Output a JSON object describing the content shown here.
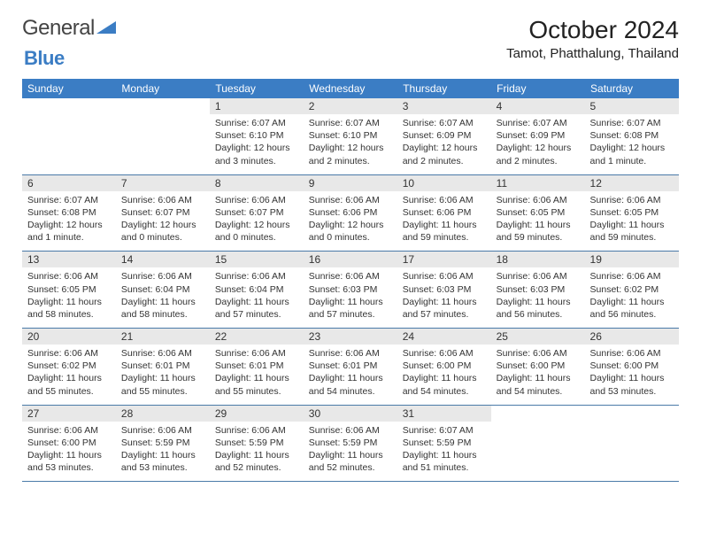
{
  "logo": {
    "word1": "General",
    "word2": "Blue"
  },
  "title": "October 2024",
  "location": "Tamot, Phatthalung, Thailand",
  "colors": {
    "header_bg": "#3b7dc4",
    "header_text": "#ffffff",
    "daynum_bg": "#e8e8e8",
    "rule": "#4a7aa8",
    "logo_blue": "#3b7dc4",
    "text": "#333333",
    "background": "#ffffff"
  },
  "weekdays": [
    "Sunday",
    "Monday",
    "Tuesday",
    "Wednesday",
    "Thursday",
    "Friday",
    "Saturday"
  ],
  "weeks": [
    [
      {
        "n": "",
        "sr": "",
        "ss": "",
        "dl": ""
      },
      {
        "n": "",
        "sr": "",
        "ss": "",
        "dl": ""
      },
      {
        "n": "1",
        "sr": "Sunrise: 6:07 AM",
        "ss": "Sunset: 6:10 PM",
        "dl": "Daylight: 12 hours and 3 minutes."
      },
      {
        "n": "2",
        "sr": "Sunrise: 6:07 AM",
        "ss": "Sunset: 6:10 PM",
        "dl": "Daylight: 12 hours and 2 minutes."
      },
      {
        "n": "3",
        "sr": "Sunrise: 6:07 AM",
        "ss": "Sunset: 6:09 PM",
        "dl": "Daylight: 12 hours and 2 minutes."
      },
      {
        "n": "4",
        "sr": "Sunrise: 6:07 AM",
        "ss": "Sunset: 6:09 PM",
        "dl": "Daylight: 12 hours and 2 minutes."
      },
      {
        "n": "5",
        "sr": "Sunrise: 6:07 AM",
        "ss": "Sunset: 6:08 PM",
        "dl": "Daylight: 12 hours and 1 minute."
      }
    ],
    [
      {
        "n": "6",
        "sr": "Sunrise: 6:07 AM",
        "ss": "Sunset: 6:08 PM",
        "dl": "Daylight: 12 hours and 1 minute."
      },
      {
        "n": "7",
        "sr": "Sunrise: 6:06 AM",
        "ss": "Sunset: 6:07 PM",
        "dl": "Daylight: 12 hours and 0 minutes."
      },
      {
        "n": "8",
        "sr": "Sunrise: 6:06 AM",
        "ss": "Sunset: 6:07 PM",
        "dl": "Daylight: 12 hours and 0 minutes."
      },
      {
        "n": "9",
        "sr": "Sunrise: 6:06 AM",
        "ss": "Sunset: 6:06 PM",
        "dl": "Daylight: 12 hours and 0 minutes."
      },
      {
        "n": "10",
        "sr": "Sunrise: 6:06 AM",
        "ss": "Sunset: 6:06 PM",
        "dl": "Daylight: 11 hours and 59 minutes."
      },
      {
        "n": "11",
        "sr": "Sunrise: 6:06 AM",
        "ss": "Sunset: 6:05 PM",
        "dl": "Daylight: 11 hours and 59 minutes."
      },
      {
        "n": "12",
        "sr": "Sunrise: 6:06 AM",
        "ss": "Sunset: 6:05 PM",
        "dl": "Daylight: 11 hours and 59 minutes."
      }
    ],
    [
      {
        "n": "13",
        "sr": "Sunrise: 6:06 AM",
        "ss": "Sunset: 6:05 PM",
        "dl": "Daylight: 11 hours and 58 minutes."
      },
      {
        "n": "14",
        "sr": "Sunrise: 6:06 AM",
        "ss": "Sunset: 6:04 PM",
        "dl": "Daylight: 11 hours and 58 minutes."
      },
      {
        "n": "15",
        "sr": "Sunrise: 6:06 AM",
        "ss": "Sunset: 6:04 PM",
        "dl": "Daylight: 11 hours and 57 minutes."
      },
      {
        "n": "16",
        "sr": "Sunrise: 6:06 AM",
        "ss": "Sunset: 6:03 PM",
        "dl": "Daylight: 11 hours and 57 minutes."
      },
      {
        "n": "17",
        "sr": "Sunrise: 6:06 AM",
        "ss": "Sunset: 6:03 PM",
        "dl": "Daylight: 11 hours and 57 minutes."
      },
      {
        "n": "18",
        "sr": "Sunrise: 6:06 AM",
        "ss": "Sunset: 6:03 PM",
        "dl": "Daylight: 11 hours and 56 minutes."
      },
      {
        "n": "19",
        "sr": "Sunrise: 6:06 AM",
        "ss": "Sunset: 6:02 PM",
        "dl": "Daylight: 11 hours and 56 minutes."
      }
    ],
    [
      {
        "n": "20",
        "sr": "Sunrise: 6:06 AM",
        "ss": "Sunset: 6:02 PM",
        "dl": "Daylight: 11 hours and 55 minutes."
      },
      {
        "n": "21",
        "sr": "Sunrise: 6:06 AM",
        "ss": "Sunset: 6:01 PM",
        "dl": "Daylight: 11 hours and 55 minutes."
      },
      {
        "n": "22",
        "sr": "Sunrise: 6:06 AM",
        "ss": "Sunset: 6:01 PM",
        "dl": "Daylight: 11 hours and 55 minutes."
      },
      {
        "n": "23",
        "sr": "Sunrise: 6:06 AM",
        "ss": "Sunset: 6:01 PM",
        "dl": "Daylight: 11 hours and 54 minutes."
      },
      {
        "n": "24",
        "sr": "Sunrise: 6:06 AM",
        "ss": "Sunset: 6:00 PM",
        "dl": "Daylight: 11 hours and 54 minutes."
      },
      {
        "n": "25",
        "sr": "Sunrise: 6:06 AM",
        "ss": "Sunset: 6:00 PM",
        "dl": "Daylight: 11 hours and 54 minutes."
      },
      {
        "n": "26",
        "sr": "Sunrise: 6:06 AM",
        "ss": "Sunset: 6:00 PM",
        "dl": "Daylight: 11 hours and 53 minutes."
      }
    ],
    [
      {
        "n": "27",
        "sr": "Sunrise: 6:06 AM",
        "ss": "Sunset: 6:00 PM",
        "dl": "Daylight: 11 hours and 53 minutes."
      },
      {
        "n": "28",
        "sr": "Sunrise: 6:06 AM",
        "ss": "Sunset: 5:59 PM",
        "dl": "Daylight: 11 hours and 53 minutes."
      },
      {
        "n": "29",
        "sr": "Sunrise: 6:06 AM",
        "ss": "Sunset: 5:59 PM",
        "dl": "Daylight: 11 hours and 52 minutes."
      },
      {
        "n": "30",
        "sr": "Sunrise: 6:06 AM",
        "ss": "Sunset: 5:59 PM",
        "dl": "Daylight: 11 hours and 52 minutes."
      },
      {
        "n": "31",
        "sr": "Sunrise: 6:07 AM",
        "ss": "Sunset: 5:59 PM",
        "dl": "Daylight: 11 hours and 51 minutes."
      },
      {
        "n": "",
        "sr": "",
        "ss": "",
        "dl": ""
      },
      {
        "n": "",
        "sr": "",
        "ss": "",
        "dl": ""
      }
    ]
  ]
}
